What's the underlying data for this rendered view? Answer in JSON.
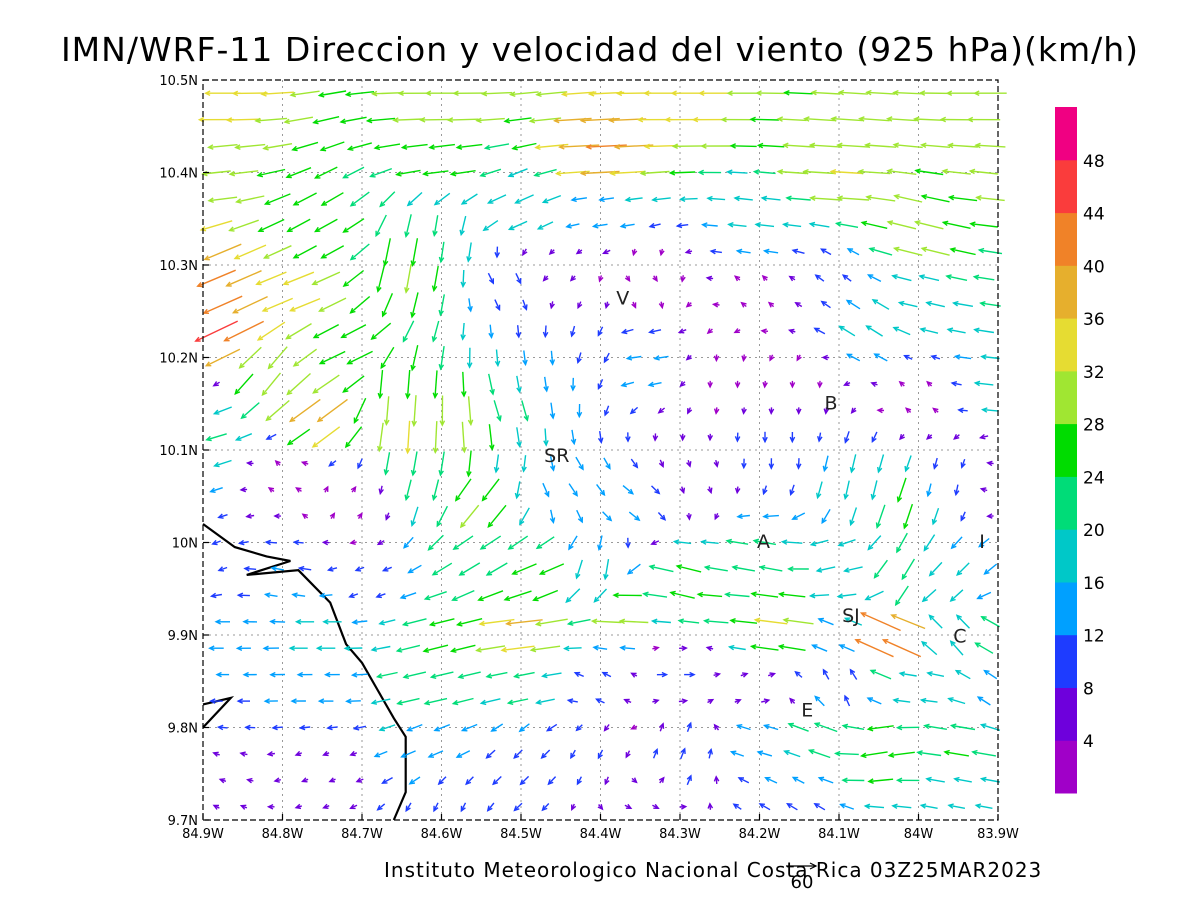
{
  "chart_data": {
    "type": "vector-field",
    "title": "IMN/WRF-11 Direccion y velocidad del viento (925 hPa)(km/h)",
    "footer": "Instituto Meteorologico Nacional Costa Rica 03Z25MAR2023",
    "reference_vector": {
      "label": "60",
      "value": 60
    },
    "x_axis": {
      "range": [
        -84.9,
        -83.9
      ],
      "ticks": [
        "84.9W",
        "84.8W",
        "84.7W",
        "84.6W",
        "84.5W",
        "84.4W",
        "84.3W",
        "84.2W",
        "84.1W",
        "84W",
        "83.9W"
      ]
    },
    "y_axis": {
      "range": [
        9.7,
        10.5
      ],
      "ticks": [
        "9.7N",
        "9.8N",
        "9.9N",
        "10N",
        "10.1N",
        "10.2N",
        "10.3N",
        "10.4N",
        "10.5N"
      ]
    },
    "grid": true,
    "colorbar": {
      "labels": [
        "4",
        "8",
        "12",
        "16",
        "20",
        "24",
        "28",
        "32",
        "36",
        "40",
        "44",
        "48"
      ],
      "levels": [
        2,
        4,
        8,
        12,
        16,
        20,
        24,
        28,
        32,
        36,
        40,
        44,
        48,
        52
      ],
      "colors": [
        "#a000c8",
        "#6e00dc",
        "#1e3cff",
        "#00a0ff",
        "#00c8c8",
        "#00dc78",
        "#00dc00",
        "#a0e632",
        "#e6dc32",
        "#e6af2d",
        "#f08228",
        "#fa3c3c",
        "#f00082"
      ]
    },
    "places": [
      {
        "label": "V",
        "lon": -84.372,
        "lat": 10.263
      },
      {
        "label": "B",
        "lon": -84.11,
        "lat": 10.15
      },
      {
        "label": "SR",
        "lon": -84.455,
        "lat": 10.093
      },
      {
        "label": "A",
        "lon": -84.195,
        "lat": 10.0
      },
      {
        "label": "I",
        "lon": -83.92,
        "lat": 10.0
      },
      {
        "label": "SJ",
        "lon": -84.085,
        "lat": 9.92
      },
      {
        "label": "C",
        "lon": -83.948,
        "lat": 9.898
      },
      {
        "label": "E",
        "lon": -84.14,
        "lat": 9.818
      }
    ],
    "coastline": [
      [
        -84.9,
        10.02
      ],
      [
        -84.86,
        9.995
      ],
      [
        -84.82,
        9.985
      ],
      [
        -84.79,
        9.98
      ],
      [
        -84.845,
        9.965
      ],
      [
        -84.78,
        9.97
      ],
      [
        -84.74,
        9.935
      ],
      [
        -84.72,
        9.89
      ],
      [
        -84.7,
        9.87
      ],
      [
        -84.68,
        9.84
      ],
      [
        -84.66,
        9.81
      ],
      [
        -84.645,
        9.79
      ],
      [
        -84.645,
        9.73
      ],
      [
        -84.66,
        9.7
      ]
    ],
    "coastline_peninsula": [
      [
        -84.9,
        9.825
      ],
      [
        -84.865,
        9.832
      ],
      [
        -84.9,
        9.8
      ]
    ],
    "wind_field": {
      "description": "Sampled 925 hPa winds (u east, v north, km/h); interpolated onto the plotted arrow grid.",
      "samples": [
        {
          "lon": -84.9,
          "lat": 10.48,
          "u": -35,
          "v": 0
        },
        {
          "lon": -84.6,
          "lat": 10.48,
          "u": -32,
          "v": 0
        },
        {
          "lon": -84.3,
          "lat": 10.48,
          "u": -34,
          "v": 0
        },
        {
          "lon": -83.9,
          "lat": 10.48,
          "u": -32,
          "v": 0
        },
        {
          "lon": -84.9,
          "lat": 10.4,
          "u": -28,
          "v": -3
        },
        {
          "lon": -84.6,
          "lat": 10.42,
          "u": -25,
          "v": -3
        },
        {
          "lon": -84.4,
          "lat": 10.42,
          "u": -40,
          "v": -2
        },
        {
          "lon": -84.1,
          "lat": 10.4,
          "u": -32,
          "v": 2
        },
        {
          "lon": -83.9,
          "lat": 10.38,
          "u": -28,
          "v": 3
        },
        {
          "lon": -84.5,
          "lat": 10.36,
          "u": -18,
          "v": -8
        },
        {
          "lon": -84.4,
          "lat": 10.36,
          "u": -14,
          "v": -2
        },
        {
          "lon": -84.2,
          "lat": 10.34,
          "u": -18,
          "v": 2
        },
        {
          "lon": -84.0,
          "lat": 10.33,
          "u": -28,
          "v": 7
        },
        {
          "lon": -84.9,
          "lat": 10.28,
          "u": -38,
          "v": -16
        },
        {
          "lon": -84.88,
          "lat": 10.22,
          "u": -42,
          "v": -20
        },
        {
          "lon": -84.78,
          "lat": 10.28,
          "u": -30,
          "v": -12
        },
        {
          "lon": -84.75,
          "lat": 10.32,
          "u": -22,
          "v": -12
        },
        {
          "lon": -84.64,
          "lat": 10.3,
          "u": -5,
          "v": -28
        },
        {
          "lon": -84.6,
          "lat": 10.32,
          "u": -3,
          "v": -20
        },
        {
          "lon": -84.52,
          "lat": 10.28,
          "u": 5,
          "v": -10
        },
        {
          "lon": -84.46,
          "lat": 10.3,
          "u": -3,
          "v": -3
        },
        {
          "lon": -84.35,
          "lat": 10.28,
          "u": 2,
          "v": -3
        },
        {
          "lon": -84.2,
          "lat": 10.28,
          "u": -2,
          "v": 2
        },
        {
          "lon": -84.1,
          "lat": 10.28,
          "u": -8,
          "v": 6
        },
        {
          "lon": -84.0,
          "lat": 10.26,
          "u": -18,
          "v": 4
        },
        {
          "lon": -83.9,
          "lat": 10.26,
          "u": -20,
          "v": 3
        },
        {
          "lon": -84.06,
          "lat": 10.24,
          "u": -16,
          "v": 10
        },
        {
          "lon": -84.9,
          "lat": 10.18,
          "u": -5,
          "v": -3
        },
        {
          "lon": -84.82,
          "lat": 10.18,
          "u": -18,
          "v": -22
        },
        {
          "lon": -84.76,
          "lat": 10.14,
          "u": -30,
          "v": -22
        },
        {
          "lon": -84.72,
          "lat": 10.2,
          "u": -25,
          "v": -12
        },
        {
          "lon": -84.66,
          "lat": 10.16,
          "u": -2,
          "v": -28
        },
        {
          "lon": -84.63,
          "lat": 10.12,
          "u": -2,
          "v": -32
        },
        {
          "lon": -84.57,
          "lat": 10.12,
          "u": 2,
          "v": -30
        },
        {
          "lon": -84.52,
          "lat": 10.14,
          "u": 6,
          "v": -20
        },
        {
          "lon": -84.47,
          "lat": 10.18,
          "u": 2,
          "v": -14
        },
        {
          "lon": -84.42,
          "lat": 10.2,
          "u": -3,
          "v": -10
        },
        {
          "lon": -84.35,
          "lat": 10.2,
          "u": -14,
          "v": -2
        },
        {
          "lon": -84.25,
          "lat": 10.18,
          "u": 0,
          "v": -3
        },
        {
          "lon": -84.15,
          "lat": 10.16,
          "u": 0,
          "v": -4
        },
        {
          "lon": -84.0,
          "lat": 10.16,
          "u": -2,
          "v": 2
        },
        {
          "lon": -83.9,
          "lat": 10.18,
          "u": -18,
          "v": 2
        },
        {
          "lon": -84.9,
          "lat": 10.12,
          "u": -20,
          "v": -6
        },
        {
          "lon": -84.8,
          "lat": 10.08,
          "u": -2,
          "v": 2
        },
        {
          "lon": -84.72,
          "lat": 10.04,
          "u": 2,
          "v": 3
        },
        {
          "lon": -84.62,
          "lat": 10.06,
          "u": -5,
          "v": -20
        },
        {
          "lon": -84.55,
          "lat": 10.04,
          "u": -18,
          "v": -22
        },
        {
          "lon": -84.5,
          "lat": 10.08,
          "u": -2,
          "v": -16
        },
        {
          "lon": -84.44,
          "lat": 10.06,
          "u": 8,
          "v": -12
        },
        {
          "lon": -84.36,
          "lat": 10.04,
          "u": 10,
          "v": -8
        },
        {
          "lon": -84.28,
          "lat": 10.06,
          "u": 2,
          "v": -6
        },
        {
          "lon": -84.18,
          "lat": 10.1,
          "u": 0,
          "v": -10
        },
        {
          "lon": -84.08,
          "lat": 10.06,
          "u": -4,
          "v": -18
        },
        {
          "lon": -84.02,
          "lat": 10.04,
          "u": -8,
          "v": -24
        },
        {
          "lon": -83.96,
          "lat": 10.06,
          "u": -2,
          "v": -10
        },
        {
          "lon": -83.9,
          "lat": 10.06,
          "u": -6,
          "v": 2
        },
        {
          "lon": -84.9,
          "lat": 9.98,
          "u": -8,
          "v": -3
        },
        {
          "lon": -84.8,
          "lat": 9.96,
          "u": -12,
          "v": 2
        },
        {
          "lon": -84.7,
          "lat": 9.96,
          "u": -8,
          "v": -3
        },
        {
          "lon": -84.55,
          "lat": 9.98,
          "u": -20,
          "v": -12
        },
        {
          "lon": -84.48,
          "lat": 9.96,
          "u": -24,
          "v": -10
        },
        {
          "lon": -84.4,
          "lat": 9.96,
          "u": -3,
          "v": -20
        },
        {
          "lon": -84.3,
          "lat": 9.96,
          "u": -24,
          "v": 6
        },
        {
          "lon": -84.2,
          "lat": 9.98,
          "u": -22,
          "v": 4
        },
        {
          "lon": -84.1,
          "lat": 9.97,
          "u": -18,
          "v": -4
        },
        {
          "lon": -84.02,
          "lat": 9.96,
          "u": -12,
          "v": -20
        },
        {
          "lon": -83.95,
          "lat": 9.96,
          "u": -12,
          "v": -12
        },
        {
          "lon": -84.9,
          "lat": 9.9,
          "u": -14,
          "v": 0
        },
        {
          "lon": -84.75,
          "lat": 9.9,
          "u": -18,
          "v": 0
        },
        {
          "lon": -84.6,
          "lat": 9.9,
          "u": -24,
          "v": -6
        },
        {
          "lon": -84.5,
          "lat": 9.91,
          "u": -36,
          "v": -4
        },
        {
          "lon": -84.38,
          "lat": 9.93,
          "u": -30,
          "v": 2
        },
        {
          "lon": -84.25,
          "lat": 9.93,
          "u": -24,
          "v": 2
        },
        {
          "lon": -84.18,
          "lat": 9.91,
          "u": -32,
          "v": 4
        },
        {
          "lon": -84.1,
          "lat": 9.9,
          "u": -14,
          "v": 6
        },
        {
          "lon": -84.04,
          "lat": 9.9,
          "u": -40,
          "v": 18
        },
        {
          "lon": -83.96,
          "lat": 9.9,
          "u": -12,
          "v": 14
        },
        {
          "lon": -83.9,
          "lat": 9.9,
          "u": -18,
          "v": 10
        },
        {
          "lon": -84.9,
          "lat": 9.84,
          "u": -12,
          "v": 0
        },
        {
          "lon": -84.75,
          "lat": 9.84,
          "u": -14,
          "v": 0
        },
        {
          "lon": -84.62,
          "lat": 9.84,
          "u": -22,
          "v": -5
        },
        {
          "lon": -84.5,
          "lat": 9.85,
          "u": -20,
          "v": -4
        },
        {
          "lon": -84.4,
          "lat": 9.85,
          "u": -8,
          "v": 4
        },
        {
          "lon": -84.3,
          "lat": 9.86,
          "u": 10,
          "v": 0
        },
        {
          "lon": -84.2,
          "lat": 9.84,
          "u": 8,
          "v": 2
        },
        {
          "lon": -84.1,
          "lat": 9.84,
          "u": -4,
          "v": 10
        },
        {
          "lon": -84.0,
          "lat": 9.84,
          "u": -16,
          "v": 2
        },
        {
          "lon": -83.9,
          "lat": 9.84,
          "u": -12,
          "v": 8
        },
        {
          "lon": -84.9,
          "lat": 9.76,
          "u": -6,
          "v": 2
        },
        {
          "lon": -84.75,
          "lat": 9.76,
          "u": -5,
          "v": -2
        },
        {
          "lon": -84.62,
          "lat": 9.78,
          "u": -14,
          "v": -6
        },
        {
          "lon": -84.5,
          "lat": 9.77,
          "u": -8,
          "v": -8
        },
        {
          "lon": -84.4,
          "lat": 9.77,
          "u": -4,
          "v": -8
        },
        {
          "lon": -84.3,
          "lat": 9.77,
          "u": 4,
          "v": 10
        },
        {
          "lon": -84.2,
          "lat": 9.79,
          "u": -14,
          "v": 4
        },
        {
          "lon": -84.12,
          "lat": 9.8,
          "u": -22,
          "v": 8
        },
        {
          "lon": -84.05,
          "lat": 9.78,
          "u": -26,
          "v": -4
        },
        {
          "lon": -83.95,
          "lat": 9.78,
          "u": -24,
          "v": 4
        },
        {
          "lon": -84.9,
          "lat": 9.71,
          "u": -4,
          "v": 2
        },
        {
          "lon": -84.6,
          "lat": 9.71,
          "u": -4,
          "v": -8
        },
        {
          "lon": -84.35,
          "lat": 9.71,
          "u": 6,
          "v": -3
        },
        {
          "lon": -84.15,
          "lat": 9.71,
          "u": -10,
          "v": 6
        },
        {
          "lon": -83.95,
          "lat": 9.72,
          "u": -16,
          "v": 3
        }
      ]
    }
  }
}
